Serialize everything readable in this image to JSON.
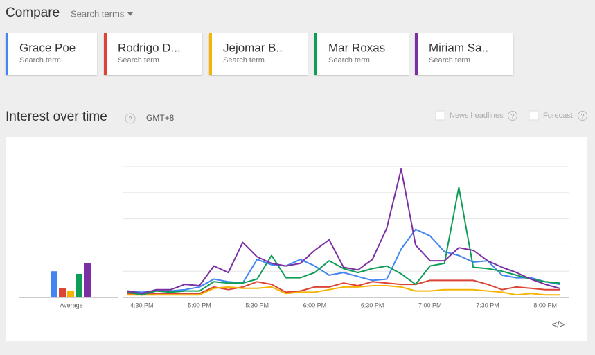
{
  "header": {
    "title": "Compare",
    "dropdown": "Search terms"
  },
  "terms_label": "Search term",
  "section": {
    "title": "Interest over time",
    "help": "?",
    "timezone": "GMT+8",
    "options": [
      {
        "label": "News headlines",
        "help": "?"
      },
      {
        "label": "Forecast",
        "help": "?"
      }
    ],
    "embed": "</>"
  },
  "chart_data": {
    "type": "line",
    "average_label": "Average",
    "categories": [
      null,
      "4:30 PM",
      null,
      null,
      null,
      "5:00 PM",
      null,
      null,
      null,
      "5:30 PM",
      null,
      null,
      null,
      "6:00 PM",
      null,
      null,
      null,
      "6:30 PM",
      null,
      null,
      null,
      "7:00 PM",
      null,
      null,
      null,
      "7:30 PM",
      null,
      null,
      null,
      "8:00 PM",
      null
    ],
    "ylim": [
      0,
      100
    ],
    "yticks": [
      0,
      20,
      40,
      60,
      80,
      100
    ],
    "grid": true,
    "series": [
      {
        "name": "Grace Poe",
        "color": "#4285f4",
        "average": 20,
        "values": [
          5,
          4,
          5,
          5,
          6,
          8,
          14,
          12,
          11,
          29,
          25,
          24,
          29,
          24,
          17,
          19,
          16,
          13,
          14,
          37,
          52,
          47,
          35,
          32,
          27,
          28,
          17,
          15,
          15,
          12,
          10
        ]
      },
      {
        "name": "Rodrigo D...",
        "color": "#db4437",
        "average": 7,
        "values": [
          3,
          2,
          3,
          3,
          3,
          3,
          8,
          6,
          8,
          12,
          10,
          4,
          5,
          8,
          8,
          11,
          9,
          12,
          11,
          10,
          10,
          13,
          13,
          13,
          13,
          10,
          6,
          8,
          7,
          6,
          6
        ]
      },
      {
        "name": "Jejomar B..",
        "color": "#f4b400",
        "average": 5,
        "values": [
          2,
          2,
          2,
          2,
          2,
          2,
          7,
          8,
          7,
          7,
          8,
          3,
          4,
          4,
          6,
          8,
          8,
          9,
          9,
          8,
          5,
          5,
          6,
          6,
          6,
          5,
          4,
          2,
          3,
          2,
          2
        ]
      },
      {
        "name": "Mar Roxas",
        "color": "#0f9d58",
        "average": 18,
        "values": [
          4,
          2,
          5,
          4,
          5,
          5,
          12,
          11,
          11,
          14,
          32,
          15,
          15,
          19,
          28,
          22,
          19,
          22,
          24,
          18,
          10,
          24,
          26,
          84,
          23,
          22,
          20,
          17,
          14,
          12,
          11
        ]
      },
      {
        "name": "Miriam Sa..",
        "color": "#7b2fa2",
        "average": 26,
        "values": [
          5,
          3,
          6,
          6,
          10,
          9,
          24,
          19,
          42,
          31,
          26,
          24,
          26,
          36,
          44,
          23,
          21,
          29,
          53,
          98,
          40,
          28,
          28,
          38,
          36,
          28,
          23,
          19,
          14,
          10,
          7
        ]
      }
    ]
  }
}
